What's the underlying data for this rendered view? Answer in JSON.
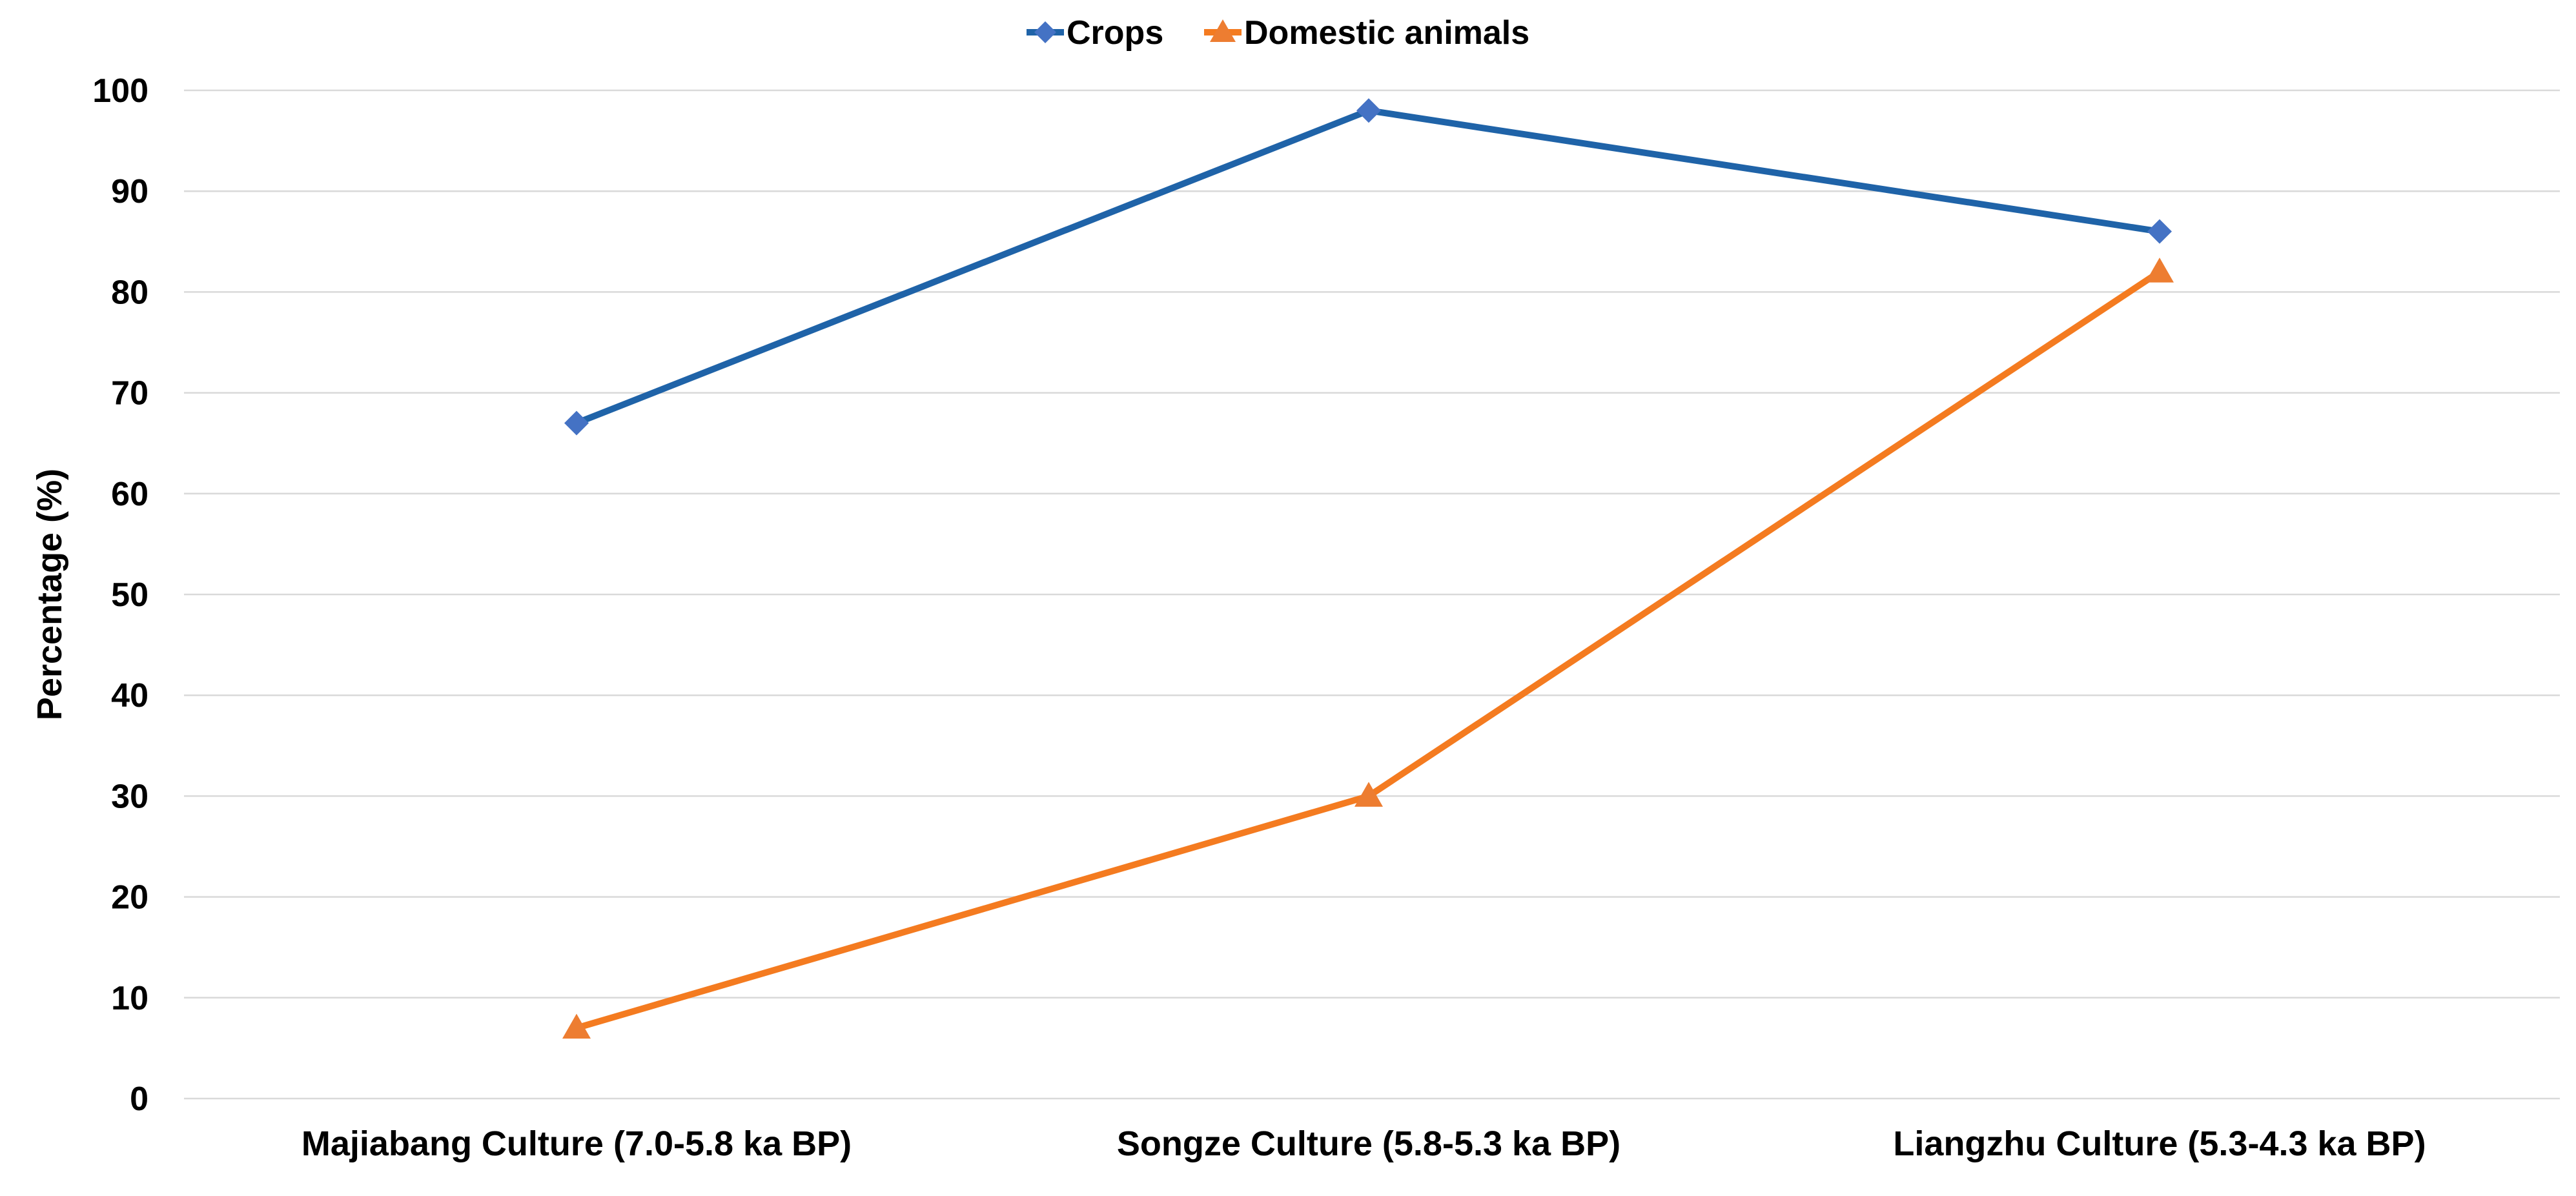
{
  "chart_data": {
    "type": "line",
    "title": "",
    "xlabel": "",
    "ylabel": "Percentage  (%)",
    "ylim": [
      0,
      100
    ],
    "yticks": [
      0,
      10,
      20,
      30,
      40,
      50,
      60,
      70,
      80,
      90,
      100
    ],
    "grid": true,
    "legend_position": "top",
    "categories": [
      "Majiabang Culture (7.0-5.8 ka BP)",
      "Songze Culture (5.8-5.3 ka BP)",
      "Liangzhu Culture (5.3-4.3 ka BP)"
    ],
    "series": [
      {
        "name": "Crops",
        "values": [
          67,
          98,
          86
        ],
        "color": "#1f63a8",
        "marker_color": "#4472c4",
        "marker": "diamond"
      },
      {
        "name": "Domestic animals",
        "values": [
          7,
          30,
          82
        ],
        "color": "#f47b20",
        "marker_color": "#ed7d31",
        "marker": "triangle"
      }
    ]
  }
}
